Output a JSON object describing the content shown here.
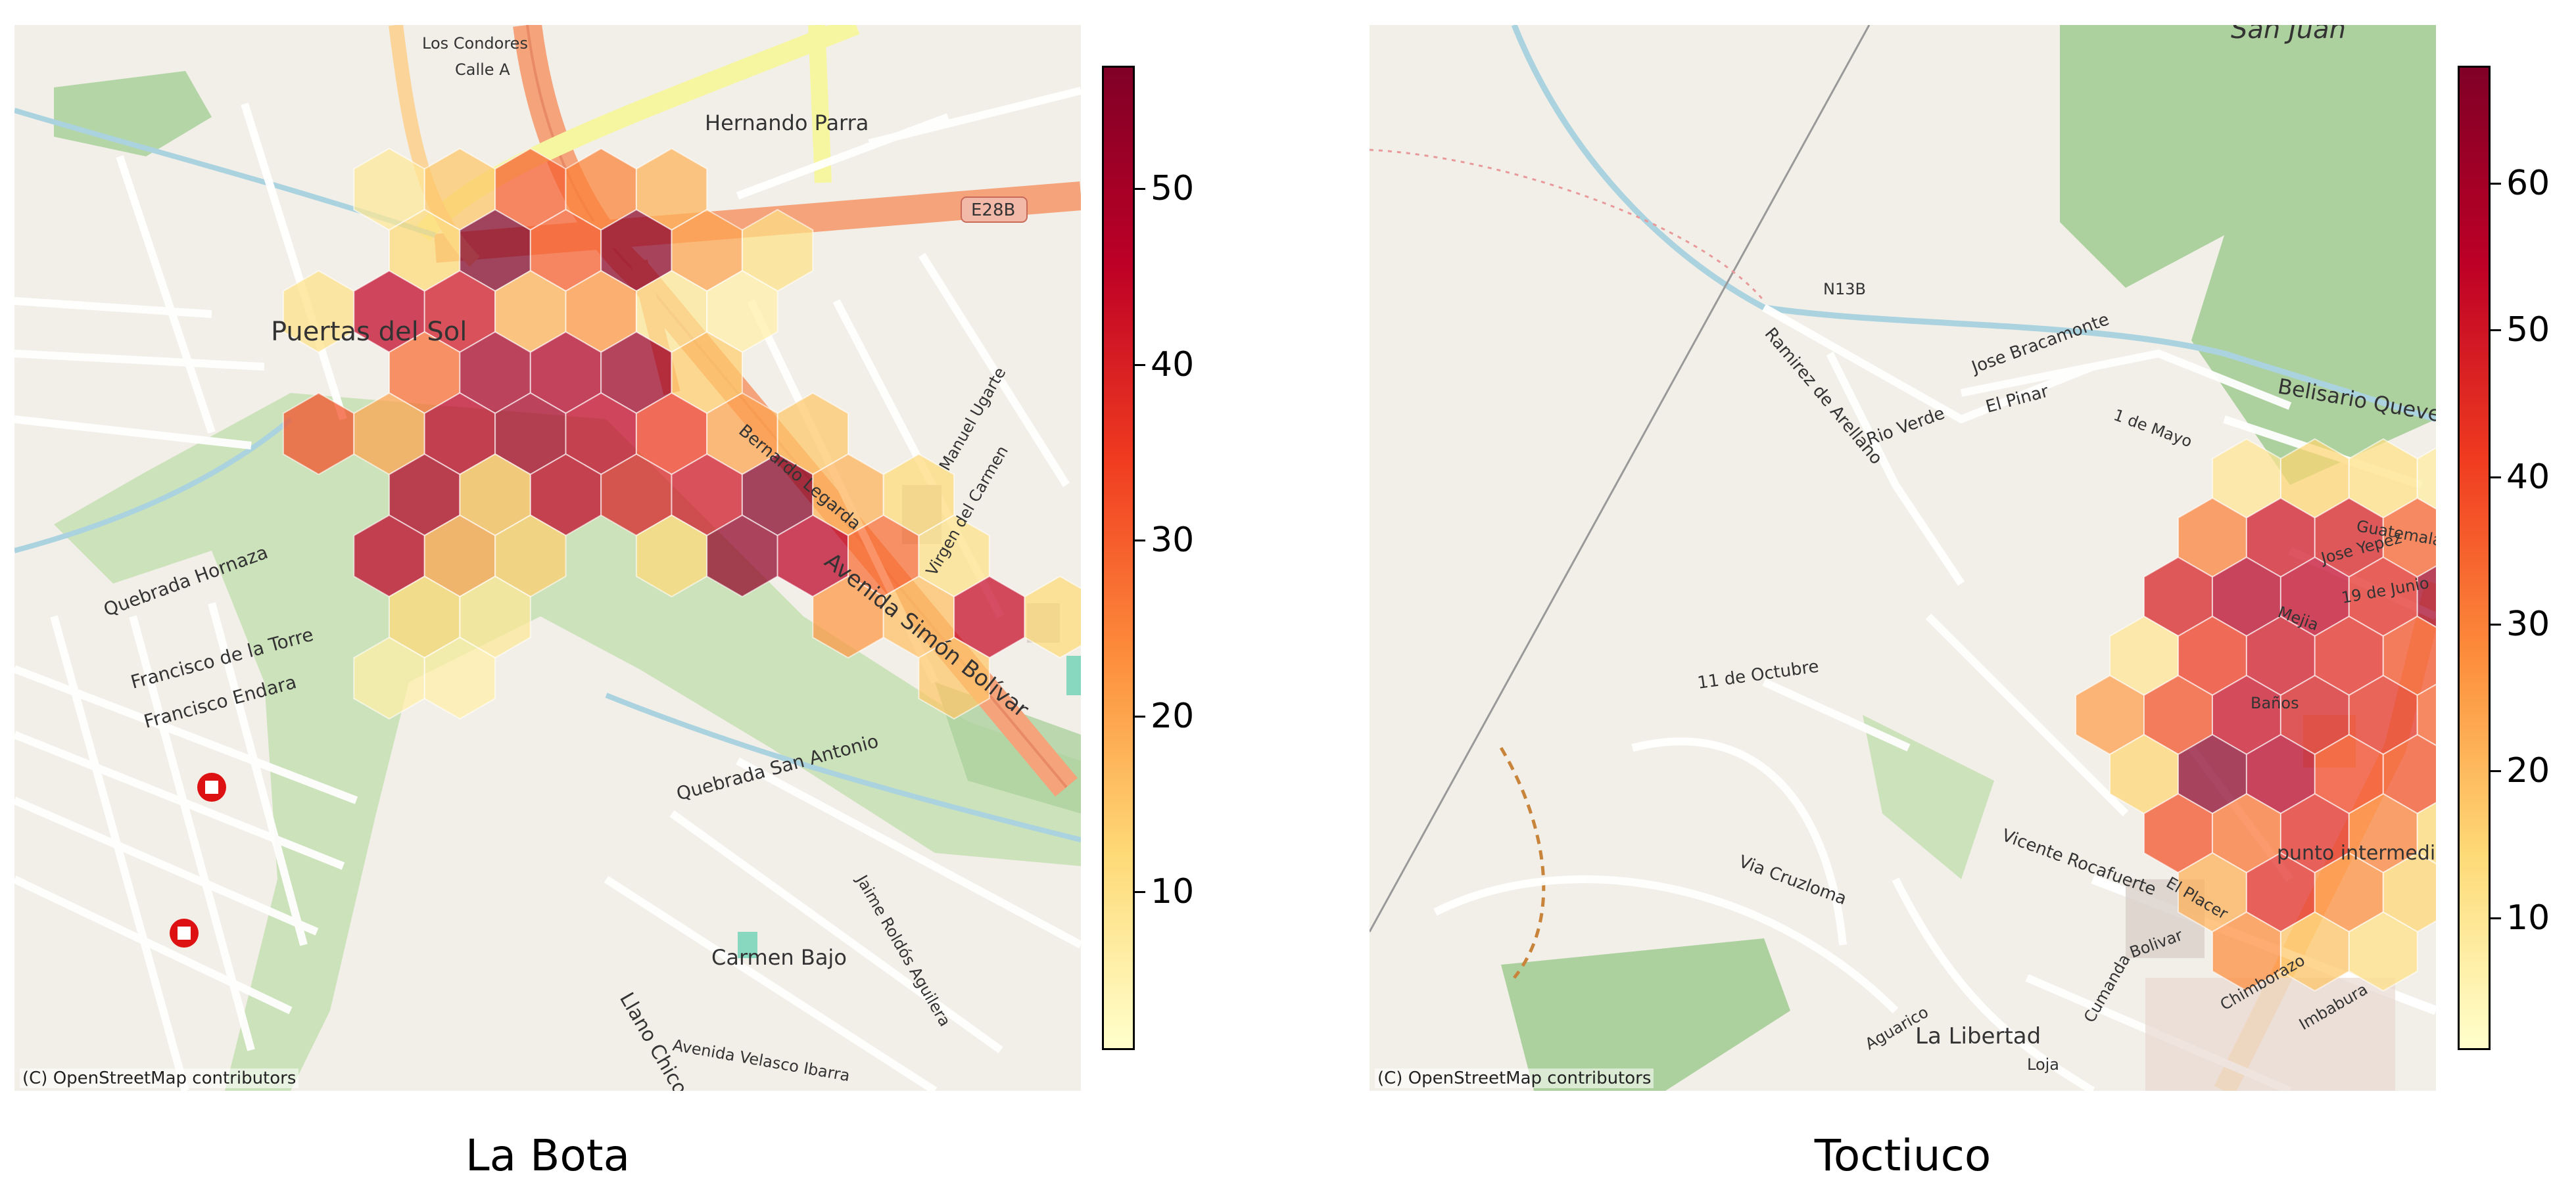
{
  "panels": [
    {
      "title": "La Bota",
      "attribution": "(C) OpenStreetMap contributors",
      "colorbar": {
        "ticks": [
          10,
          20,
          30,
          40,
          50
        ],
        "min": 1,
        "max": 57
      },
      "map_labels": [
        "Puertas del Sol",
        "Hernando Parra",
        "Avenida Simón Bolívar",
        "Quebrada Hornaza",
        "Quebrada San Antonio",
        "Francisco de la Torre",
        "Francisco Endara",
        "Carmen Bajo",
        "Llano Chico",
        "E28B",
        "Los Condores",
        "Calle A",
        "Bernardo Legarda",
        "Virgen del Carmen",
        "Manuel Ugarte",
        "Avenida Velasco Ibarra",
        "Jaime Roldós Aguilera"
      ],
      "hexes": [
        [
          0,
          0,
          8
        ],
        [
          1,
          0,
          15
        ],
        [
          2,
          0,
          30
        ],
        [
          3,
          0,
          25
        ],
        [
          4,
          0,
          18
        ],
        [
          0,
          1,
          12
        ],
        [
          1,
          1,
          57
        ],
        [
          2,
          1,
          30
        ],
        [
          3,
          1,
          55
        ],
        [
          4,
          1,
          20
        ],
        [
          5,
          1,
          10
        ],
        [
          -1,
          2,
          10
        ],
        [
          0,
          2,
          45
        ],
        [
          1,
          2,
          42
        ],
        [
          2,
          2,
          18
        ],
        [
          3,
          2,
          22
        ],
        [
          4,
          2,
          8
        ],
        [
          5,
          2,
          6
        ],
        [
          0,
          3,
          28
        ],
        [
          1,
          3,
          50
        ],
        [
          2,
          3,
          48
        ],
        [
          3,
          3,
          52
        ],
        [
          4,
          3,
          14
        ],
        [
          -1,
          4,
          32
        ],
        [
          0,
          4,
          20
        ],
        [
          1,
          4,
          46
        ],
        [
          2,
          4,
          50
        ],
        [
          3,
          4,
          45
        ],
        [
          4,
          4,
          35
        ],
        [
          5,
          4,
          20
        ],
        [
          6,
          4,
          15
        ],
        [
          0,
          5,
          48
        ],
        [
          1,
          5,
          16
        ],
        [
          2,
          5,
          45
        ],
        [
          3,
          5,
          40
        ],
        [
          4,
          5,
          42
        ],
        [
          5,
          5,
          56
        ],
        [
          6,
          5,
          18
        ],
        [
          7,
          5,
          12
        ],
        [
          0,
          6,
          46
        ],
        [
          1,
          6,
          20
        ],
        [
          2,
          6,
          14
        ],
        [
          4,
          6,
          12
        ],
        [
          5,
          6,
          54
        ],
        [
          6,
          6,
          46
        ],
        [
          7,
          6,
          28
        ],
        [
          8,
          6,
          10
        ],
        [
          0,
          7,
          12
        ],
        [
          1,
          7,
          8
        ],
        [
          6,
          7,
          22
        ],
        [
          7,
          7,
          16
        ],
        [
          8,
          7,
          44
        ],
        [
          9,
          7,
          12
        ],
        [
          0,
          8,
          6
        ],
        [
          1,
          8,
          6
        ],
        [
          8,
          8,
          15
        ]
      ]
    },
    {
      "title": "Toctiuco",
      "attribution": "(C) OpenStreetMap contributors",
      "colorbar": {
        "ticks": [
          10,
          20,
          30,
          40,
          50,
          60
        ],
        "min": 1,
        "max": 68
      },
      "map_labels": [
        "San Juan",
        "Belisario Quevedo",
        "Jose Bracamonte",
        "El Pinar",
        "Ramirez de Arellano",
        "Rio Verde",
        "11 de Octubre",
        "Via Cruzloma",
        "La Libertad",
        "punto intermedio",
        "Vicente Rocafuerte",
        "El Placer",
        "Chimborazo",
        "Imbabura",
        "Guatemala",
        "Bolivar",
        "Cumanda",
        "Aguarico",
        "Loja",
        "Baños",
        "Mejia",
        "1 de Mayo",
        "19 de Junio",
        "Jose Yepez",
        "N13B"
      ],
      "hexes": [
        [
          1,
          0,
          10
        ],
        [
          2,
          0,
          15
        ],
        [
          3,
          0,
          12
        ],
        [
          4,
          0,
          8
        ],
        [
          0,
          1,
          30
        ],
        [
          1,
          1,
          50
        ],
        [
          2,
          1,
          48
        ],
        [
          3,
          1,
          35
        ],
        [
          4,
          1,
          30
        ],
        [
          5,
          1,
          12
        ],
        [
          0,
          2,
          48
        ],
        [
          1,
          2,
          56
        ],
        [
          2,
          2,
          54
        ],
        [
          3,
          2,
          45
        ],
        [
          4,
          2,
          60
        ],
        [
          5,
          2,
          15
        ],
        [
          -1,
          3,
          10
        ],
        [
          0,
          3,
          42
        ],
        [
          1,
          3,
          50
        ],
        [
          2,
          3,
          45
        ],
        [
          3,
          3,
          38
        ],
        [
          4,
          3,
          32
        ],
        [
          -1,
          4,
          25
        ],
        [
          0,
          4,
          38
        ],
        [
          1,
          4,
          52
        ],
        [
          2,
          4,
          48
        ],
        [
          3,
          4,
          44
        ],
        [
          4,
          4,
          35
        ],
        [
          -1,
          5,
          15
        ],
        [
          0,
          5,
          66
        ],
        [
          1,
          5,
          56
        ],
        [
          2,
          5,
          40
        ],
        [
          3,
          5,
          38
        ],
        [
          4,
          5,
          18
        ],
        [
          0,
          6,
          38
        ],
        [
          1,
          6,
          32
        ],
        [
          2,
          6,
          45
        ],
        [
          3,
          6,
          30
        ],
        [
          4,
          6,
          14
        ],
        [
          0,
          7,
          22
        ],
        [
          1,
          7,
          45
        ],
        [
          2,
          7,
          28
        ],
        [
          3,
          7,
          15
        ],
        [
          1,
          8,
          28
        ],
        [
          2,
          8,
          18
        ],
        [
          3,
          8,
          12
        ]
      ]
    }
  ]
}
